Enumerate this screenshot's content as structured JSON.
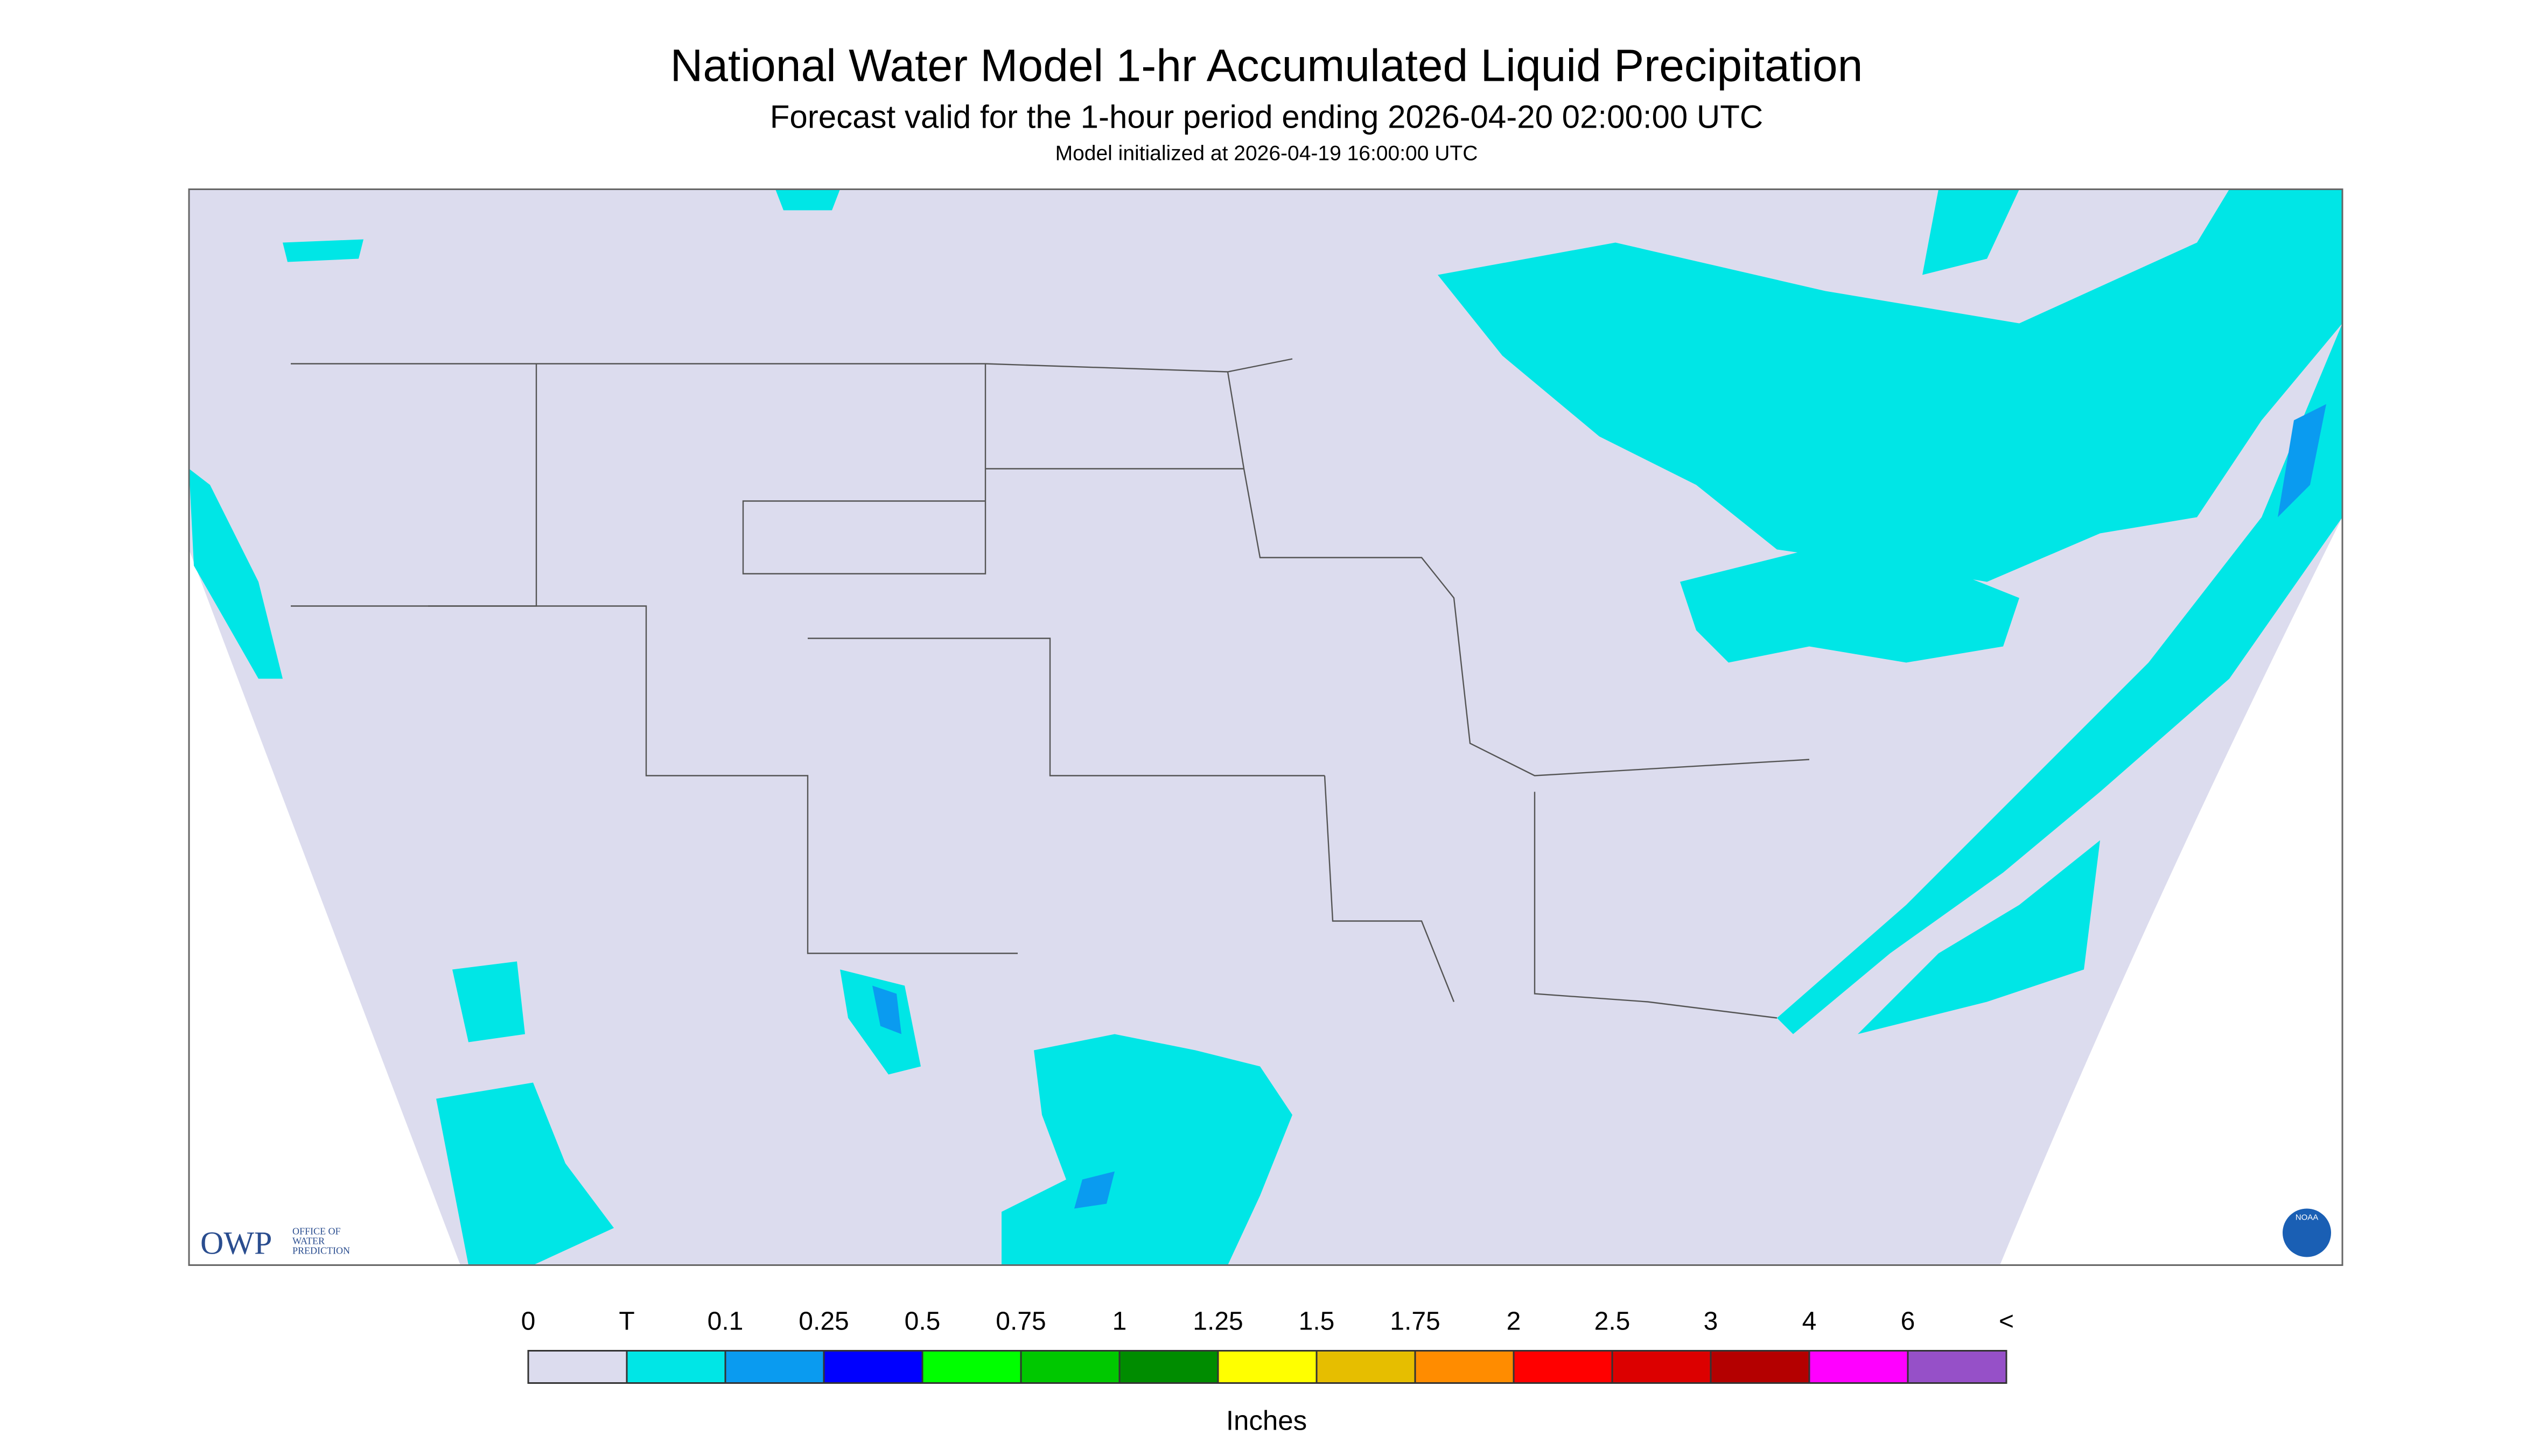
{
  "header": {
    "title": "National Water Model 1-hr Accumulated Liquid Precipitation",
    "subtitle": "Forecast valid for the 1-hour period ending 2026-04-20 02:00:00 UTC",
    "init": "Model initialized at 2026-04-19 16:00:00 UTC"
  },
  "logo": {
    "name": "OWP",
    "lines": [
      "OFFICE OF",
      "WATER",
      "PREDICTION"
    ],
    "agency": "NOAA"
  },
  "legend": {
    "labels": [
      "0",
      "T",
      "0.1",
      "0.25",
      "0.5",
      "0.75",
      "1",
      "1.25",
      "1.5",
      "1.75",
      "2",
      "2.5",
      "3",
      "4",
      "6",
      "<"
    ],
    "colors": [
      "#dcdcee",
      "#00e6e6",
      "#0a9bf0",
      "#0000ff",
      "#00ff00",
      "#00c800",
      "#008c00",
      "#ffff00",
      "#e6be00",
      "#ff8c00",
      "#ff0000",
      "#dc0000",
      "#b40000",
      "#ff00ff",
      "#9650c8"
    ],
    "unit": "Inches"
  }
}
